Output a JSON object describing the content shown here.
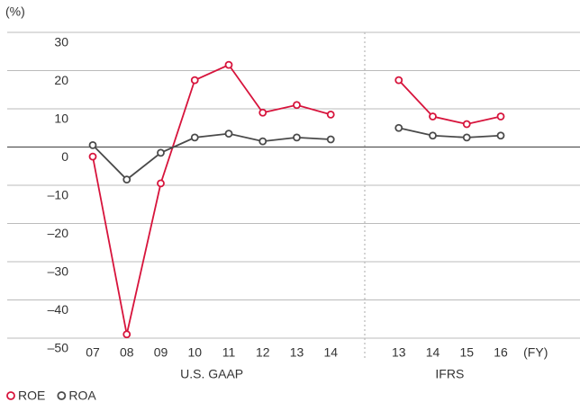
{
  "chart_data": {
    "type": "line",
    "y_unit_label": "(%)",
    "x_unit_label": "(FY)",
    "categories": [
      "07",
      "08",
      "09",
      "10",
      "11",
      "12",
      "13",
      "14",
      null,
      "13",
      "14",
      "15",
      "16"
    ],
    "x_groups": [
      "U.S. GAAP",
      "IFRS"
    ],
    "series": [
      {
        "name": "ROE",
        "color": "#d7143c",
        "values": [
          -2.5,
          -49,
          -9.5,
          17.5,
          21.5,
          9,
          11,
          8.5,
          null,
          17.5,
          8,
          6,
          8
        ]
      },
      {
        "name": "ROA",
        "color": "#4a4a4a",
        "values": [
          0.5,
          -8.5,
          -1.5,
          2.5,
          3.5,
          1.5,
          2.5,
          2,
          null,
          5,
          3,
          2.5,
          3
        ]
      }
    ],
    "ylim": [
      -50,
      30
    ],
    "yticks": [
      30,
      20,
      10,
      0,
      {
        "value": -10,
        "label": "–10"
      },
      {
        "value": -20,
        "label": "–20"
      },
      {
        "value": -30,
        "label": "–30"
      },
      {
        "value": -40,
        "label": "–40"
      },
      {
        "value": -50,
        "label": "–50"
      }
    ],
    "grid": true,
    "legend": "bottom-left"
  }
}
